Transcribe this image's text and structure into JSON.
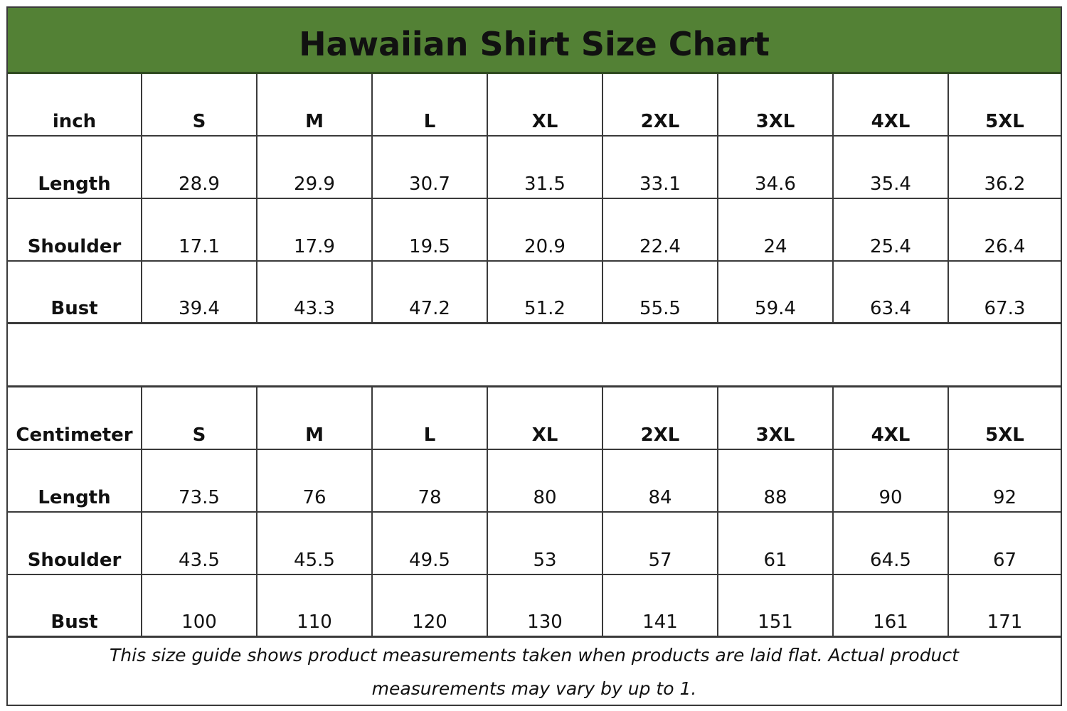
{
  "title": "Hawaiian Shirt Size Chart",
  "colors": {
    "header_bg": "#538135",
    "border": "#3a3a3a"
  },
  "tables": [
    {
      "unit": "inch",
      "sizes": [
        "S",
        "M",
        "L",
        "XL",
        "2XL",
        "3XL",
        "4XL",
        "5XL"
      ],
      "rows": [
        {
          "label": "Length",
          "values": [
            "28.9",
            "29.9",
            "30.7",
            "31.5",
            "33.1",
            "34.6",
            "35.4",
            "36.2"
          ]
        },
        {
          "label": "Shoulder",
          "values": [
            "17.1",
            "17.9",
            "19.5",
            "20.9",
            "22.4",
            "24",
            "25.4",
            "26.4"
          ]
        },
        {
          "label": "Bust",
          "values": [
            "39.4",
            "43.3",
            "47.2",
            "51.2",
            "55.5",
            "59.4",
            "63.4",
            "67.3"
          ]
        }
      ]
    },
    {
      "unit": "Centimeter",
      "sizes": [
        "S",
        "M",
        "L",
        "XL",
        "2XL",
        "3XL",
        "4XL",
        "5XL"
      ],
      "rows": [
        {
          "label": "Length",
          "values": [
            "73.5",
            "76",
            "78",
            "80",
            "84",
            "88",
            "90",
            "92"
          ]
        },
        {
          "label": "Shoulder",
          "values": [
            "43.5",
            "45.5",
            "49.5",
            "53",
            "57",
            "61",
            "64.5",
            "67"
          ]
        },
        {
          "label": "Bust",
          "values": [
            "100",
            "110",
            "120",
            "130",
            "141",
            "151",
            "161",
            "171"
          ]
        }
      ]
    }
  ],
  "footer": "This size guide shows product measurements taken when products are laid flat. Actual product measurements may vary by up to 1."
}
